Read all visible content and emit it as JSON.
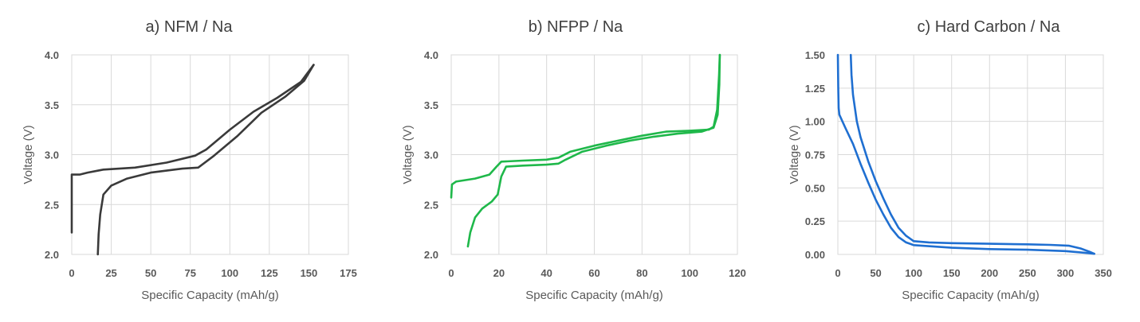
{
  "chart_data": [
    {
      "type": "line",
      "title": "a) NFM / Na",
      "xlabel": "Specific Capacity (mAh/g)",
      "ylabel": "Voltage (V)",
      "xlim": [
        0,
        175
      ],
      "ylim": [
        2.0,
        4.0
      ],
      "xticks": [
        0,
        25,
        50,
        75,
        100,
        125,
        150,
        175
      ],
      "yticks": [
        2.0,
        2.5,
        3.0,
        3.5,
        4.0
      ],
      "xtick_labels": [
        "0",
        "25",
        "50",
        "75",
        "100",
        "125",
        "150",
        "175"
      ],
      "ytick_labels": [
        "2.0",
        "2.5",
        "3.0",
        "3.5",
        "4.0"
      ],
      "grid": true,
      "color": "#3a3a3a",
      "series": [
        {
          "points": [
            [
              0,
              2.22
            ],
            [
              0,
              2.8
            ],
            [
              5,
              2.8
            ],
            [
              10,
              2.82
            ],
            [
              20,
              2.85
            ],
            [
              40,
              2.87
            ],
            [
              60,
              2.92
            ],
            [
              78,
              2.99
            ],
            [
              85,
              3.05
            ],
            [
              100,
              3.25
            ],
            [
              115,
              3.43
            ],
            [
              130,
              3.57
            ],
            [
              145,
              3.73
            ],
            [
              153,
              3.9
            ]
          ]
        },
        {
          "points": [
            [
              153,
              3.9
            ],
            [
              147,
              3.74
            ],
            [
              135,
              3.58
            ],
            [
              120,
              3.42
            ],
            [
              105,
              3.19
            ],
            [
              90,
              2.99
            ],
            [
              80,
              2.87
            ],
            [
              70,
              2.86
            ],
            [
              50,
              2.82
            ],
            [
              35,
              2.76
            ],
            [
              25,
              2.69
            ],
            [
              20,
              2.6
            ],
            [
              18,
              2.4
            ],
            [
              17,
              2.2
            ],
            [
              16.5,
              2.0
            ]
          ]
        }
      ]
    },
    {
      "type": "line",
      "title": "b) NFPP / Na",
      "xlabel": "Specific Capacity (mAh/g)",
      "ylabel": "Voltage (V)",
      "xlim": [
        0,
        120
      ],
      "ylim": [
        2.0,
        4.0
      ],
      "xticks": [
        0,
        20,
        40,
        60,
        80,
        100,
        120
      ],
      "yticks": [
        2.0,
        2.5,
        3.0,
        3.5,
        4.0
      ],
      "xtick_labels": [
        "0",
        "20",
        "40",
        "60",
        "80",
        "100",
        "120"
      ],
      "ytick_labels": [
        "2.0",
        "2.5",
        "3.0",
        "3.5",
        "4.0"
      ],
      "grid": true,
      "color": "#1fb84a",
      "series": [
        {
          "points": [
            [
              0,
              2.57
            ],
            [
              0.3,
              2.7
            ],
            [
              2,
              2.73
            ],
            [
              10,
              2.76
            ],
            [
              16,
              2.8
            ],
            [
              19,
              2.88
            ],
            [
              21,
              2.93
            ],
            [
              30,
              2.94
            ],
            [
              40,
              2.95
            ],
            [
              45,
              2.97
            ],
            [
              50,
              3.03
            ],
            [
              60,
              3.09
            ],
            [
              70,
              3.14
            ],
            [
              80,
              3.19
            ],
            [
              90,
              3.23
            ],
            [
              100,
              3.24
            ],
            [
              108,
              3.25
            ],
            [
              110,
              3.28
            ],
            [
              111.5,
              3.45
            ],
            [
              112.3,
              3.8
            ],
            [
              112.6,
              4.0
            ]
          ]
        },
        {
          "points": [
            [
              112.6,
              4.0
            ],
            [
              112.4,
              3.7
            ],
            [
              111.7,
              3.4
            ],
            [
              110,
              3.27
            ],
            [
              105,
              3.23
            ],
            [
              95,
              3.21
            ],
            [
              85,
              3.18
            ],
            [
              75,
              3.14
            ],
            [
              65,
              3.09
            ],
            [
              55,
              3.03
            ],
            [
              48,
              2.95
            ],
            [
              45,
              2.91
            ],
            [
              40,
              2.9
            ],
            [
              30,
              2.89
            ],
            [
              23,
              2.88
            ],
            [
              21,
              2.78
            ],
            [
              19.5,
              2.6
            ],
            [
              17,
              2.53
            ],
            [
              13,
              2.46
            ],
            [
              10,
              2.37
            ],
            [
              8,
              2.22
            ],
            [
              7,
              2.08
            ]
          ]
        }
      ]
    },
    {
      "type": "line",
      "title": "c) Hard Carbon / Na",
      "xlabel": "Specific Capacity (mAh/g)",
      "ylabel": "Voltage (V)",
      "xlim": [
        0,
        350
      ],
      "ylim": [
        0,
        1.5
      ],
      "xticks": [
        0,
        50,
        100,
        150,
        200,
        250,
        300,
        350
      ],
      "yticks": [
        0,
        0.25,
        0.5,
        0.75,
        1.0,
        1.25,
        1.5
      ],
      "xtick_labels": [
        "0",
        "50",
        "100",
        "150",
        "200",
        "250",
        "300",
        "350"
      ],
      "ytick_labels": [
        "0.00",
        "0.25",
        "0.50",
        "0.75",
        "1.00",
        "1.25",
        "1.50"
      ],
      "grid": true,
      "color": "#1f6fd1",
      "series": [
        {
          "points": [
            [
              0,
              1.5
            ],
            [
              0.5,
              1.25
            ],
            [
              1,
              1.1
            ],
            [
              2,
              1.05
            ],
            [
              10,
              0.95
            ],
            [
              20,
              0.83
            ],
            [
              30,
              0.68
            ],
            [
              40,
              0.54
            ],
            [
              50,
              0.41
            ],
            [
              60,
              0.3
            ],
            [
              70,
              0.2
            ],
            [
              80,
              0.13
            ],
            [
              90,
              0.09
            ],
            [
              100,
              0.07
            ],
            [
              150,
              0.05
            ],
            [
              200,
              0.04
            ],
            [
              250,
              0.035
            ],
            [
              300,
              0.025
            ],
            [
              330,
              0.01
            ],
            [
              338,
              0.005
            ]
          ]
        },
        {
          "points": [
            [
              338,
              0.005
            ],
            [
              332,
              0.02
            ],
            [
              320,
              0.045
            ],
            [
              305,
              0.065
            ],
            [
              280,
              0.072
            ],
            [
              250,
              0.076
            ],
            [
              200,
              0.08
            ],
            [
              150,
              0.085
            ],
            [
              120,
              0.09
            ],
            [
              100,
              0.1
            ],
            [
              90,
              0.14
            ],
            [
              80,
              0.2
            ],
            [
              70,
              0.3
            ],
            [
              60,
              0.42
            ],
            [
              50,
              0.55
            ],
            [
              40,
              0.7
            ],
            [
              30,
              0.88
            ],
            [
              25,
              1.0
            ],
            [
              20,
              1.2
            ],
            [
              18,
              1.35
            ],
            [
              17,
              1.5
            ]
          ]
        }
      ]
    }
  ]
}
